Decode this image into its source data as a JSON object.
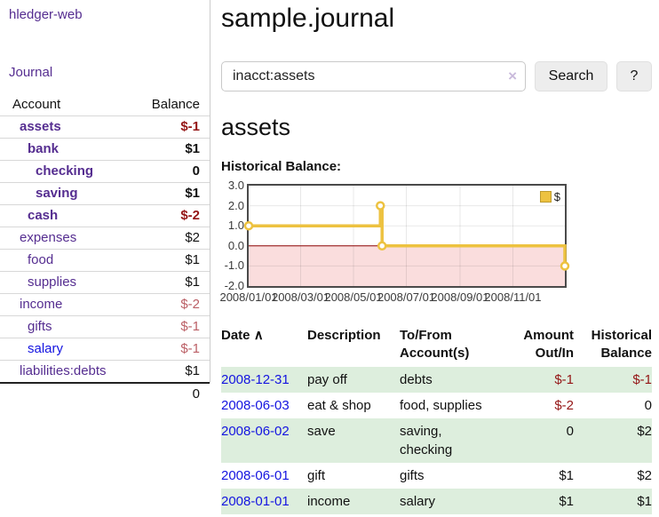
{
  "app": {
    "brand": "hledger-web"
  },
  "colors": {
    "link_purple": "#552d90",
    "link_blue": "#1414e0",
    "negative_strong": "#941616",
    "negative_muted": "#bb5f66",
    "row_stripe_green": "#ddeedd",
    "chart_line_yellow": "#edc240",
    "chart_negative_fill": "#fadddd",
    "chart_zero_line": "#8b0000"
  },
  "sidebar": {
    "journal_link": "Journal",
    "accounts": {
      "header_account": "Account",
      "header_balance": "Balance",
      "rows": [
        {
          "name": "assets",
          "balance": "$-1"
        },
        {
          "name": "bank",
          "balance": "$1"
        },
        {
          "name": "checking",
          "balance": "0"
        },
        {
          "name": "saving",
          "balance": "$1"
        },
        {
          "name": "cash",
          "balance": "$-2"
        },
        {
          "name": "expenses",
          "balance": "$2"
        },
        {
          "name": "food",
          "balance": "$1"
        },
        {
          "name": "supplies",
          "balance": "$1"
        },
        {
          "name": "income",
          "balance": "$-2"
        },
        {
          "name": "gifts",
          "balance": "$-1"
        },
        {
          "name": "salary",
          "balance": "$-1"
        },
        {
          "name": "liabilities:debts",
          "balance": "$1"
        }
      ],
      "total": "0"
    }
  },
  "main": {
    "title": "sample.journal",
    "search": {
      "value": "inacct:assets",
      "clear_icon": "×",
      "search_button": "Search",
      "help_button": "?"
    },
    "account_heading": "assets",
    "register": {
      "headers": {
        "date": "Date",
        "sort_indicator": "∧",
        "description": "Description",
        "accounts": "To/From Account(s)",
        "amount": "Amount Out/In",
        "balance": "Historical Balance"
      },
      "rows": [
        {
          "date": "2008-12-31",
          "description": "pay off",
          "accounts": "debts",
          "amount": "$-1",
          "balance": "$-1"
        },
        {
          "date": "2008-06-03",
          "description": "eat & shop",
          "accounts": "food, supplies",
          "amount": "$-2",
          "balance": "0"
        },
        {
          "date": "2008-06-02",
          "description": "save",
          "accounts": "saving, checking",
          "amount": "0",
          "balance": "$2"
        },
        {
          "date": "2008-06-01",
          "description": "gift",
          "accounts": "gifts",
          "amount": "$1",
          "balance": "$2"
        },
        {
          "date": "2008-01-01",
          "description": "income",
          "accounts": "salary",
          "amount": "$1",
          "balance": "$1"
        }
      ]
    }
  },
  "chart_data": {
    "type": "line",
    "title": "Historical Balance:",
    "step": true,
    "legend": {
      "label": "$",
      "position": "top-right"
    },
    "xlim": [
      "2008/01/01",
      "2008/12/31"
    ],
    "ylim": [
      -2,
      3
    ],
    "x_ticks": [
      "2008/01/01",
      "2008/03/01",
      "2008/05/01",
      "2008/07/01",
      "2008/09/01",
      "2008/11/01"
    ],
    "y_ticks": [
      "3.0",
      "2.0",
      "1.0",
      "0.0",
      "-1.0",
      "-2.0"
    ],
    "series": [
      {
        "name": "$",
        "points": [
          [
            "2008/01/01",
            1
          ],
          [
            "2008/06/01",
            2
          ],
          [
            "2008/06/03",
            0
          ],
          [
            "2008/12/31",
            -1
          ]
        ]
      }
    ],
    "line_color": "#edc240",
    "marker_fill": "#ffffff",
    "negative_region_fill": "#fadddd",
    "zero_line_color": "#8b0000",
    "grid_color": "rgba(0,0,0,0.09)"
  }
}
